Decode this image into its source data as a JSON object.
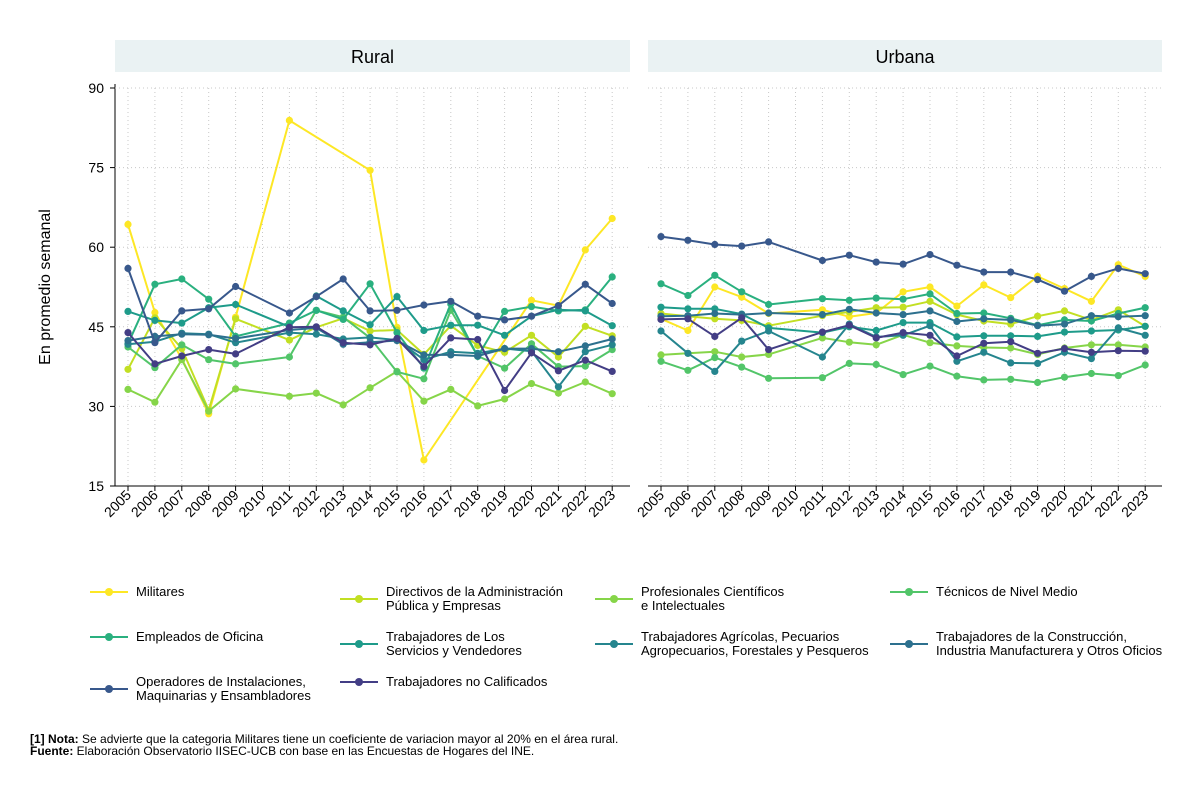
{
  "chart_data": {
    "type": "line",
    "ylabel": "En promedio semanal",
    "ylim": [
      15,
      90
    ],
    "yticks": [
      15,
      30,
      45,
      60,
      75,
      90
    ],
    "grid": true,
    "years": [
      "2005",
      "2006",
      "2007",
      "2008",
      "2009",
      "2010",
      "2011",
      "2012",
      "2013",
      "2014",
      "2015",
      "2016",
      "2017",
      "2018",
      "2019",
      "2020",
      "2021",
      "2022",
      "2023"
    ],
    "panels": [
      {
        "title": "Rural",
        "series": [
          {
            "name": "Militares",
            "color": "#fde725",
            "values": [
              64.3,
              47.7,
              39.0,
              28.6,
              46.8,
              null,
              83.9,
              null,
              null,
              74.5,
              44.9,
              19.9,
              null,
              null,
              null,
              50.0,
              49.0,
              59.5,
              65.4
            ]
          },
          {
            "name": "Directivos de la Administración Pública y Empresas",
            "color": "#c2df23",
            "values": [
              37.0,
              46.7,
              40.9,
              29.3,
              46.5,
              null,
              42.5,
              44.9,
              46.6,
              44.2,
              44.4,
              39.8,
              45.2,
              41.5,
              40.2,
              43.4,
              39.3,
              45.1,
              43.3
            ]
          },
          {
            "name": "Profesionales Científicos e Intelectuales",
            "color": "#86d549",
            "values": [
              33.2,
              30.8,
              38.8,
              29.1,
              33.3,
              null,
              31.9,
              32.5,
              30.3,
              33.5,
              36.6,
              31.0,
              33.2,
              30.1,
              31.4,
              34.3,
              32.5,
              34.6,
              32.4
            ]
          },
          {
            "name": "Técnicos de Nivel Medio",
            "color": "#52c569",
            "values": [
              41.2,
              37.3,
              41.6,
              38.8,
              38.0,
              null,
              39.3,
              48.1,
              46.8,
              42.9,
              36.5,
              35.2,
              48.1,
              39.5,
              37.2,
              41.8,
              37.5,
              37.6,
              40.7
            ]
          },
          {
            "name": "Empleados de Oficina",
            "color": "#2ab07f",
            "values": [
              41.8,
              53.0,
              54.0,
              50.2,
              43.2,
              null,
              45.7,
              48.1,
              46.4,
              53.1,
              43.9,
              37.2,
              49.3,
              39.4,
              47.9,
              48.8,
              48.0,
              48.2,
              54.4
            ]
          },
          {
            "name": "Trabajadores de Los Servicios y Vendedores",
            "color": "#1e9b8a",
            "values": [
              47.9,
              46.2,
              45.7,
              48.6,
              49.2,
              null,
              45.0,
              50.8,
              48.0,
              45.4,
              50.7,
              44.3,
              45.3,
              45.3,
              43.4,
              47.0,
              48.2,
              48.0,
              45.2
            ]
          },
          {
            "name": "Trabajadores Agrícolas, Pecuarios Agropecuarios, Forestales y Pesqueros",
            "color": "#25858e",
            "values": [
              41.7,
              42.2,
              43.8,
              43.6,
              42.0,
              null,
              43.9,
              43.6,
              42.7,
              43.0,
              42.5,
              38.8,
              40.3,
              40.0,
              40.9,
              40.4,
              33.7,
              40.3,
              41.6
            ]
          },
          {
            "name": "Trabajadores de la Construcción, Industria Manufacturera y Otros Oficios",
            "color": "#2d708e",
            "values": [
              42.4,
              43.2,
              43.6,
              43.5,
              42.8,
              null,
              44.4,
              44.8,
              41.7,
              42.1,
              42.4,
              39.7,
              39.7,
              39.5,
              40.9,
              40.9,
              40.3,
              41.4,
              42.7
            ]
          },
          {
            "name": "Operadores de Instalaciones, Maquinarias y Ensambladores",
            "color": "#38588c",
            "values": [
              56.0,
              42.0,
              48.0,
              48.4,
              52.6,
              null,
              47.6,
              50.7,
              54.0,
              48.0,
              48.1,
              49.1,
              49.8,
              47.0,
              46.3,
              47.0,
              49.0,
              53.0,
              49.4
            ]
          },
          {
            "name": "Trabajadores no Calificados",
            "color": "#433e85",
            "values": [
              43.9,
              38.0,
              39.5,
              40.7,
              39.9,
              null,
              44.9,
              45.0,
              42.0,
              41.6,
              42.8,
              37.5,
              42.9,
              42.6,
              33.0,
              40.1,
              36.7,
              38.7,
              36.6
            ]
          }
        ]
      },
      {
        "title": "Urbana",
        "series": [
          {
            "name": "Militares",
            "color": "#fde725",
            "values": [
              46.5,
              44.3,
              52.5,
              50.6,
              47.5,
              null,
              48.2,
              46.9,
              47.6,
              51.6,
              52.5,
              48.9,
              52.9,
              50.5,
              54.5,
              52.2,
              49.8,
              56.7,
              54.5
            ]
          },
          {
            "name": "Directivos de la Administración Pública y Empresas",
            "color": "#c2df23",
            "values": [
              47.5,
              47.0,
              46.5,
              46.2,
              45.2,
              null,
              47.1,
              47.8,
              48.6,
              48.7,
              49.8,
              47.3,
              46.1,
              45.5,
              47.0,
              48.0,
              46.3,
              48.2,
              45.1
            ]
          },
          {
            "name": "Profesionales Científicos e Intelectuales",
            "color": "#86d549",
            "values": [
              39.7,
              40.0,
              40.3,
              39.3,
              39.8,
              null,
              42.9,
              42.1,
              41.6,
              43.5,
              42.0,
              41.4,
              41.1,
              41.0,
              39.8,
              41.0,
              41.6,
              41.6,
              41.2
            ]
          },
          {
            "name": "Técnicos de Nivel Medio",
            "color": "#52c569",
            "values": [
              38.5,
              36.8,
              39.2,
              37.4,
              35.3,
              null,
              35.4,
              38.1,
              37.9,
              36.0,
              37.6,
              35.7,
              35.0,
              35.1,
              34.5,
              35.5,
              36.2,
              35.8,
              37.8
            ]
          },
          {
            "name": "Empleados de Oficina",
            "color": "#2ab07f",
            "values": [
              53.1,
              50.9,
              54.7,
              51.6,
              49.2,
              null,
              50.3,
              50.0,
              50.4,
              50.2,
              51.2,
              47.5,
              47.6,
              46.6,
              45.3,
              46.3,
              46.1,
              47.5,
              48.6
            ]
          },
          {
            "name": "Trabajadores de Los Servicios y Vendedores",
            "color": "#1e9b8a",
            "values": [
              48.7,
              48.4,
              48.4,
              47.4,
              44.8,
              null,
              43.9,
              45.0,
              44.3,
              45.8,
              45.8,
              43.1,
              43.3,
              43.3,
              43.2,
              44.0,
              44.2,
              44.4,
              45.1
            ]
          },
          {
            "name": "Trabajadores Agrícolas, Pecuarios Agropecuarios, Forestales y Pesqueros",
            "color": "#25858e",
            "values": [
              44.2,
              40.0,
              36.6,
              42.3,
              44.2,
              null,
              39.3,
              45.5,
              43.1,
              43.4,
              45.2,
              38.5,
              40.2,
              38.2,
              38.1,
              40.2,
              39.0,
              44.8,
              43.4
            ]
          },
          {
            "name": "Trabajadores de la Construcción, Industria Manufacturera y Otros Oficios",
            "color": "#2d708e",
            "values": [
              47.0,
              47.1,
              47.5,
              47.3,
              47.6,
              null,
              47.3,
              48.3,
              47.6,
              47.3,
              48.0,
              46.0,
              46.5,
              46.3,
              45.2,
              45.5,
              47.1,
              46.9,
              47.1
            ]
          },
          {
            "name": "Operadores de Instalaciones, Maquinarias y Ensambladores",
            "color": "#38588c",
            "values": [
              62.0,
              61.3,
              60.5,
              60.2,
              61.0,
              null,
              57.5,
              58.5,
              57.2,
              56.8,
              58.6,
              56.6,
              55.3,
              55.3,
              53.9,
              51.7,
              54.5,
              56.0,
              55.0
            ]
          },
          {
            "name": "Trabajadores no Calificados",
            "color": "#433e85",
            "values": [
              46.4,
              46.5,
              43.2,
              46.7,
              40.7,
              null,
              44.0,
              45.3,
              42.9,
              43.9,
              43.4,
              39.5,
              41.9,
              42.2,
              40.0,
              40.9,
              40.2,
              40.5,
              40.4
            ]
          }
        ]
      }
    ]
  },
  "legend": [
    {
      "label": "Militares",
      "color": "#fde725"
    },
    {
      "label": "Directivos de la Administración\nPública y Empresas",
      "color": "#c2df23"
    },
    {
      "label": "Profesionales Científicos\ne Intelectuales",
      "color": "#86d549"
    },
    {
      "label": "Técnicos de Nivel Medio",
      "color": "#52c569"
    },
    {
      "label": "Empleados de Oficina",
      "color": "#2ab07f"
    },
    {
      "label": "Trabajadores de Los\nServicios y Vendedores",
      "color": "#1e9b8a"
    },
    {
      "label": "Trabajadores Agrícolas, Pecuarios\nAgropecuarios, Forestales y Pesqueros",
      "color": "#25858e"
    },
    {
      "label": "Trabajadores de la Construcción,\nIndustria Manufacturera y Otros Oficios",
      "color": "#2d708e"
    },
    {
      "label": "Operadores de Instalaciones,\nMaquinarias y Ensambladores",
      "color": "#38588c"
    },
    {
      "label": "Trabajadores no Calificados",
      "color": "#433e85"
    }
  ],
  "notes": {
    "nota_label": "[1] Nota:",
    "nota_text": " Se advierte que la categoria Militares tiene un coeficiente de variacion mayor al 20% en el área rural.",
    "fuente_label": "Fuente:",
    "fuente_text": " Elaboración Observatorio IISEC-UCB con base en las Encuestas de Hogares del INE."
  }
}
